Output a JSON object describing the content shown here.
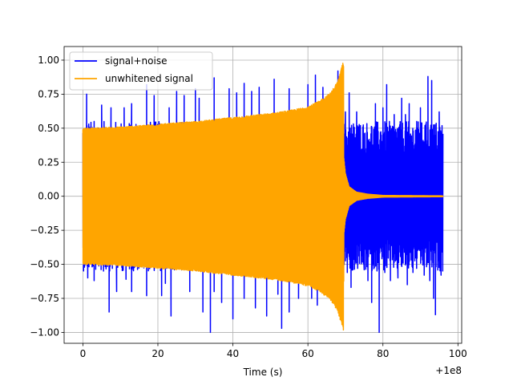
{
  "chart_data": {
    "type": "line",
    "title": "",
    "xlabel": "Time (s)",
    "ylabel": "",
    "x_offset_label": "+1e8",
    "xlim": [
      -5,
      101
    ],
    "ylim": [
      -1.08,
      1.1
    ],
    "xticks": [
      0,
      20,
      40,
      60,
      80,
      100
    ],
    "xtick_labels": [
      "0",
      "20",
      "40",
      "60",
      "80",
      "100"
    ],
    "yticks": [
      -1.0,
      -0.75,
      -0.5,
      -0.25,
      0.0,
      0.25,
      0.5,
      0.75,
      1.0
    ],
    "ytick_labels": [
      "−1.00",
      "−0.75",
      "−0.50",
      "−0.25",
      "0.00",
      "0.25",
      "0.50",
      "0.75",
      "1.00"
    ],
    "grid": true,
    "legend_position": "top-left",
    "series": [
      {
        "name": "signal+noise",
        "color": "#0000ff",
        "x_range": [
          0,
          96
        ],
        "typical_envelope": 0.55,
        "peak_spikes": [
          {
            "x": 1,
            "y": 0.75
          },
          {
            "x": 1.3,
            "y": -0.6
          },
          {
            "x": 3,
            "y": 0.55
          },
          {
            "x": 3,
            "y": -0.62
          },
          {
            "x": 5,
            "y": 0.67
          },
          {
            "x": 5.5,
            "y": -0.55
          },
          {
            "x": 7.5,
            "y": 0.65
          },
          {
            "x": 7,
            "y": -0.85
          },
          {
            "x": 9,
            "y": -0.7
          },
          {
            "x": 11,
            "y": 0.65
          },
          {
            "x": 11.5,
            "y": -0.61
          },
          {
            "x": 13,
            "y": 0.68
          },
          {
            "x": 13,
            "y": -0.7
          },
          {
            "x": 17,
            "y": 0.82
          },
          {
            "x": 17,
            "y": -0.73
          },
          {
            "x": 19,
            "y": 0.74
          },
          {
            "x": 21,
            "y": -0.73
          },
          {
            "x": 22,
            "y": -0.64
          },
          {
            "x": 23,
            "y": 0.65
          },
          {
            "x": 23.5,
            "y": -0.88
          },
          {
            "x": 25,
            "y": 0.77
          },
          {
            "x": 27,
            "y": 0.74
          },
          {
            "x": 28.5,
            "y": -0.7
          },
          {
            "x": 30,
            "y": 0.79
          },
          {
            "x": 31,
            "y": 0.72
          },
          {
            "x": 32,
            "y": -0.85
          },
          {
            "x": 34,
            "y": -1.0
          },
          {
            "x": 35,
            "y": 0.87
          },
          {
            "x": 35,
            "y": -0.7
          },
          {
            "x": 37,
            "y": -0.78
          },
          {
            "x": 39,
            "y": 0.79
          },
          {
            "x": 40,
            "y": -0.9
          },
          {
            "x": 41,
            "y": 0.76
          },
          {
            "x": 43,
            "y": 0.83
          },
          {
            "x": 43,
            "y": -0.75
          },
          {
            "x": 45,
            "y": 0.77
          },
          {
            "x": 46,
            "y": -0.82
          },
          {
            "x": 47,
            "y": 0.8
          },
          {
            "x": 49,
            "y": -0.88
          },
          {
            "x": 51,
            "y": 0.86
          },
          {
            "x": 52,
            "y": -0.72
          },
          {
            "x": 53,
            "y": -0.97
          },
          {
            "x": 55,
            "y": 0.79
          },
          {
            "x": 55,
            "y": -0.85
          },
          {
            "x": 57.5,
            "y": -0.75
          },
          {
            "x": 60,
            "y": 0.82
          },
          {
            "x": 61,
            "y": -0.75
          },
          {
            "x": 62,
            "y": 0.89
          },
          {
            "x": 62.5,
            "y": -0.8
          },
          {
            "x": 64,
            "y": 0.8
          },
          {
            "x": 66,
            "y": -0.7
          },
          {
            "x": 68,
            "y": 0.92
          },
          {
            "x": 70,
            "y": 0.62
          },
          {
            "x": 70.5,
            "y": -0.56
          },
          {
            "x": 71,
            "y": 0.76
          },
          {
            "x": 71.5,
            "y": -0.67
          },
          {
            "x": 72,
            "y": -0.54
          },
          {
            "x": 73,
            "y": 0.62
          },
          {
            "x": 74,
            "y": 0.52
          },
          {
            "x": 75,
            "y": -0.54
          },
          {
            "x": 76,
            "y": -0.62
          },
          {
            "x": 77,
            "y": -0.78
          },
          {
            "x": 78,
            "y": 0.68
          },
          {
            "x": 79,
            "y": -1.0
          },
          {
            "x": 80,
            "y": 0.65
          },
          {
            "x": 80.5,
            "y": -0.56
          },
          {
            "x": 81,
            "y": 0.82
          },
          {
            "x": 82,
            "y": -0.62
          },
          {
            "x": 83,
            "y": 0.6
          },
          {
            "x": 84,
            "y": -0.6
          },
          {
            "x": 85,
            "y": 0.72
          },
          {
            "x": 86,
            "y": 0.6
          },
          {
            "x": 86.5,
            "y": -0.65
          },
          {
            "x": 87,
            "y": 0.68
          },
          {
            "x": 88,
            "y": -0.56
          },
          {
            "x": 89,
            "y": 0.55
          },
          {
            "x": 90,
            "y": 0.65
          },
          {
            "x": 91,
            "y": -0.58
          },
          {
            "x": 92,
            "y": 0.88
          },
          {
            "x": 92.5,
            "y": -0.62
          },
          {
            "x": 93,
            "y": 0.85
          },
          {
            "x": 93.5,
            "y": -0.75
          },
          {
            "x": 94,
            "y": -0.87
          },
          {
            "x": 95,
            "y": 0.62
          },
          {
            "x": 95.5,
            "y": -0.58
          }
        ]
      },
      {
        "name": "unwhitened signal",
        "color": "#ffa500",
        "envelope_points": [
          {
            "x": 0,
            "y": 0.5
          },
          {
            "x": 10,
            "y": 0.51
          },
          {
            "x": 20,
            "y": 0.53
          },
          {
            "x": 30,
            "y": 0.55
          },
          {
            "x": 40,
            "y": 0.58
          },
          {
            "x": 50,
            "y": 0.61
          },
          {
            "x": 55,
            "y": 0.63
          },
          {
            "x": 60,
            "y": 0.66
          },
          {
            "x": 63,
            "y": 0.7
          },
          {
            "x": 66,
            "y": 0.76
          },
          {
            "x": 68,
            "y": 0.85
          },
          {
            "x": 69.5,
            "y": 1.0
          },
          {
            "x": 69.6,
            "y": 0.28
          },
          {
            "x": 70,
            "y": 0.17
          },
          {
            "x": 71,
            "y": 0.07
          },
          {
            "x": 73,
            "y": 0.03
          },
          {
            "x": 76,
            "y": 0.015
          },
          {
            "x": 80,
            "y": 0.006
          },
          {
            "x": 96,
            "y": 0.003
          }
        ]
      }
    ]
  }
}
